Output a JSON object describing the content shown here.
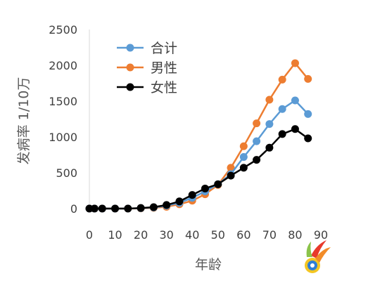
{
  "chart_data": {
    "type": "line",
    "xlabel": "年龄",
    "ylabel": "发病率 1/10万",
    "xlim": [
      0,
      90
    ],
    "ylim": [
      0,
      2500
    ],
    "x_ticks": [
      "0",
      "10",
      "20",
      "30",
      "40",
      "50",
      "60",
      "70",
      "80",
      "90"
    ],
    "y_ticks": [
      "0",
      "500",
      "1000",
      "1500",
      "2000",
      "2500"
    ],
    "grid": false,
    "legend_position": "top-left",
    "x": [
      0,
      2,
      5,
      10,
      15,
      20,
      25,
      30,
      35,
      40,
      45,
      50,
      55,
      60,
      65,
      70,
      75,
      80,
      85
    ],
    "series": [
      {
        "name": "合计",
        "color": "#5b9bd5",
        "values": [
          0,
          0,
          0,
          0,
          0,
          5,
          15,
          40,
          80,
          150,
          240,
          340,
          480,
          720,
          940,
          1180,
          1390,
          1510,
          1320
        ]
      },
      {
        "name": "男性",
        "color": "#ed7d31",
        "values": [
          0,
          0,
          0,
          0,
          0,
          3,
          10,
          25,
          60,
          110,
          200,
          330,
          570,
          870,
          1190,
          1520,
          1800,
          2030,
          1810
        ]
      },
      {
        "name": "女性",
        "color": "#000000",
        "values": [
          0,
          0,
          0,
          0,
          0,
          8,
          20,
          50,
          100,
          190,
          280,
          340,
          460,
          570,
          680,
          850,
          1040,
          1110,
          980
        ]
      }
    ]
  },
  "watermark": {
    "icon": "colorful-logo-icon"
  }
}
